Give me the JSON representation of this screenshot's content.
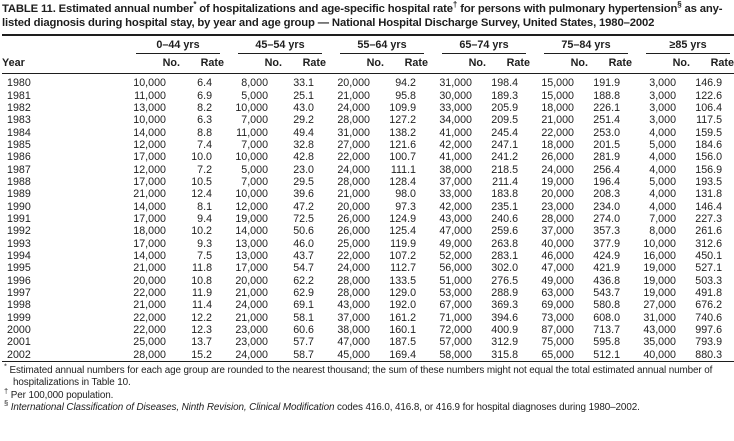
{
  "title": {
    "t1": "TABLE 11. Estimated annual number",
    "s1": "*",
    "t2": " of hospitalizations and age-specific hospital rate",
    "s2": "†",
    "t3": " for persons with pulmonary hypertension",
    "s3": "§",
    "t4": " as any-listed diagnosis during hospital stay, by year and age group — National Hospital Discharge Survey, United States, 1980–2002"
  },
  "table": {
    "year_label": "Year",
    "no_label": "No.",
    "rate_label": "Rate",
    "groups": [
      {
        "label": "0–44 yrs"
      },
      {
        "label": "45–54 yrs"
      },
      {
        "label": "55–64 yrs"
      },
      {
        "label": "65–74 yrs"
      },
      {
        "label": "75–84 yrs"
      },
      {
        "label": "≥85 yrs"
      }
    ],
    "rows": [
      {
        "year": "1980",
        "values": [
          "10,000",
          "6.4",
          "8,000",
          "33.1",
          "20,000",
          "94.2",
          "31,000",
          "198.4",
          "15,000",
          "191.9",
          "3,000",
          "146.9"
        ]
      },
      {
        "year": "1981",
        "values": [
          "11,000",
          "6.9",
          "5,000",
          "25.1",
          "21,000",
          "95.8",
          "30,000",
          "189.3",
          "15,000",
          "188.8",
          "3,000",
          "122.6"
        ]
      },
      {
        "year": "1982",
        "values": [
          "13,000",
          "8.2",
          "10,000",
          "43.0",
          "24,000",
          "109.9",
          "33,000",
          "205.9",
          "18,000",
          "226.1",
          "3,000",
          "106.4"
        ]
      },
      {
        "year": "1983",
        "values": [
          "10,000",
          "6.3",
          "7,000",
          "29.2",
          "28,000",
          "127.2",
          "34,000",
          "209.5",
          "21,000",
          "251.4",
          "3,000",
          "117.5"
        ]
      },
      {
        "year": "1984",
        "values": [
          "14,000",
          "8.8",
          "11,000",
          "49.4",
          "31,000",
          "138.2",
          "41,000",
          "245.4",
          "22,000",
          "253.0",
          "4,000",
          "159.5"
        ]
      },
      {
        "year": "1985",
        "values": [
          "12,000",
          "7.4",
          "7,000",
          "32.8",
          "27,000",
          "121.6",
          "42,000",
          "247.1",
          "18,000",
          "201.5",
          "5,000",
          "184.6"
        ]
      },
      {
        "year": "1986",
        "values": [
          "17,000",
          "10.0",
          "10,000",
          "42.8",
          "22,000",
          "100.7",
          "41,000",
          "241.2",
          "26,000",
          "281.9",
          "4,000",
          "156.0"
        ]
      },
      {
        "year": "1987",
        "values": [
          "12,000",
          "7.2",
          "5,000",
          "23.0",
          "24,000",
          "111.1",
          "38,000",
          "218.5",
          "24,000",
          "256.4",
          "4,000",
          "156.9"
        ]
      },
      {
        "year": "1988",
        "values": [
          "17,000",
          "10.5",
          "7,000",
          "29.5",
          "28,000",
          "128.4",
          "37,000",
          "211.4",
          "19,000",
          "196.4",
          "5,000",
          "193.5"
        ]
      },
      {
        "year": "1989",
        "values": [
          "21,000",
          "12.4",
          "10,000",
          "39.6",
          "21,000",
          "98.0",
          "33,000",
          "183.8",
          "20,000",
          "208.3",
          "4,000",
          "131.8"
        ]
      },
      {
        "year": "1990",
        "values": [
          "14,000",
          "8.1",
          "12,000",
          "47.2",
          "20,000",
          "97.3",
          "42,000",
          "235.1",
          "23,000",
          "234.0",
          "4,000",
          "146.4"
        ]
      },
      {
        "year": "1991",
        "values": [
          "17,000",
          "9.4",
          "19,000",
          "72.5",
          "26,000",
          "124.9",
          "43,000",
          "240.6",
          "28,000",
          "274.0",
          "7,000",
          "227.3"
        ]
      },
      {
        "year": "1992",
        "values": [
          "18,000",
          "10.2",
          "14,000",
          "50.6",
          "26,000",
          "125.4",
          "47,000",
          "259.6",
          "37,000",
          "357.3",
          "8,000",
          "261.6"
        ]
      },
      {
        "year": "1993",
        "values": [
          "17,000",
          "9.3",
          "13,000",
          "46.0",
          "25,000",
          "119.9",
          "49,000",
          "263.8",
          "40,000",
          "377.9",
          "10,000",
          "312.6"
        ]
      },
      {
        "year": "1994",
        "values": [
          "14,000",
          "7.5",
          "13,000",
          "43.7",
          "22,000",
          "107.2",
          "52,000",
          "283.1",
          "46,000",
          "424.9",
          "16,000",
          "450.1"
        ]
      },
      {
        "year": "1995",
        "values": [
          "21,000",
          "11.8",
          "17,000",
          "54.7",
          "24,000",
          "112.7",
          "56,000",
          "302.0",
          "47,000",
          "421.9",
          "19,000",
          "527.1"
        ]
      },
      {
        "year": "1996",
        "values": [
          "20,000",
          "10.8",
          "20,000",
          "62.2",
          "28,000",
          "133.5",
          "51,000",
          "276.5",
          "49,000",
          "436.8",
          "19,000",
          "503.3"
        ]
      },
      {
        "year": "1997",
        "values": [
          "22,000",
          "11.9",
          "21,000",
          "62.9",
          "28,000",
          "129.0",
          "53,000",
          "288.9",
          "63,000",
          "543.7",
          "19,000",
          "491.8"
        ]
      },
      {
        "year": "1998",
        "values": [
          "21,000",
          "11.4",
          "24,000",
          "69.1",
          "43,000",
          "192.0",
          "67,000",
          "369.3",
          "69,000",
          "580.8",
          "27,000",
          "676.2"
        ]
      },
      {
        "year": "1999",
        "values": [
          "22,000",
          "12.2",
          "21,000",
          "58.1",
          "37,000",
          "161.2",
          "71,000",
          "394.6",
          "73,000",
          "608.0",
          "31,000",
          "740.6"
        ]
      },
      {
        "year": "2000",
        "values": [
          "22,000",
          "12.3",
          "23,000",
          "60.6",
          "38,000",
          "160.1",
          "72,000",
          "400.9",
          "87,000",
          "713.7",
          "43,000",
          "997.6"
        ]
      },
      {
        "year": "2001",
        "values": [
          "25,000",
          "13.7",
          "23,000",
          "57.7",
          "47,000",
          "187.5",
          "57,000",
          "312.9",
          "75,000",
          "595.8",
          "35,000",
          "793.9"
        ]
      },
      {
        "year": "2002",
        "values": [
          "28,000",
          "15.2",
          "24,000",
          "58.7",
          "45,000",
          "169.4",
          "58,000",
          "315.8",
          "65,000",
          "512.1",
          "40,000",
          "880.3"
        ]
      }
    ]
  },
  "footnotes": [
    {
      "marker": "*",
      "text": "Estimated annual numbers for each age group are rounded to the nearest thousand; the sum of these numbers might not equal the total estimated annual number of hospitalizations in Table 10."
    },
    {
      "marker": "†",
      "text": "Per 100,000 population."
    },
    {
      "marker": "§",
      "italic_text": "International Classification of Diseases, Ninth Revision, Clinical Modification",
      "text": " codes 416.0, 416.8, or 416.9 for hospital diagnoses during 1980–2002."
    }
  ],
  "colors": {
    "text": "#1e1e1e",
    "rule": "#1e1e1e",
    "background": "#ffffff"
  }
}
